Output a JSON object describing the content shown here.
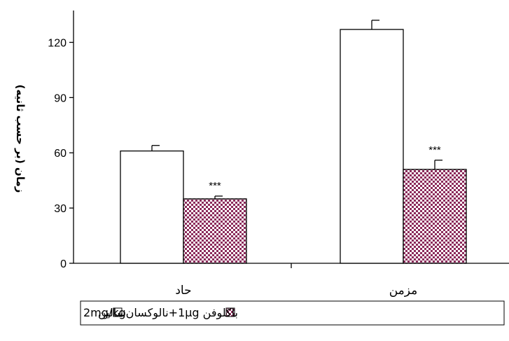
{
  "chart_data": {
    "type": "bar",
    "categories": [
      "حاد",
      "مزمن"
    ],
    "series": [
      {
        "name": "سالين",
        "values": [
          61,
          127
        ],
        "errors": [
          3,
          5
        ],
        "significance": [
          "",
          ""
        ]
      },
      {
        "name": "باکلوفن 1μg+نالوکسان2mg/kg",
        "values": [
          35,
          51
        ],
        "errors": [
          1.5,
          5
        ],
        "significance": [
          "***",
          "***"
        ]
      }
    ],
    "ylabel": "زمان (بر حسب ثانیه)",
    "yticks": [
      0,
      30,
      60,
      90,
      120
    ],
    "ylim": [
      0,
      140
    ],
    "grid": false,
    "legend_position": "bottom"
  },
  "colors": {
    "saline_fill": "#ffffff",
    "treatment_pattern_a": "#8b2a5a",
    "treatment_pattern_b": "#ffffff",
    "axis": "#000000"
  }
}
